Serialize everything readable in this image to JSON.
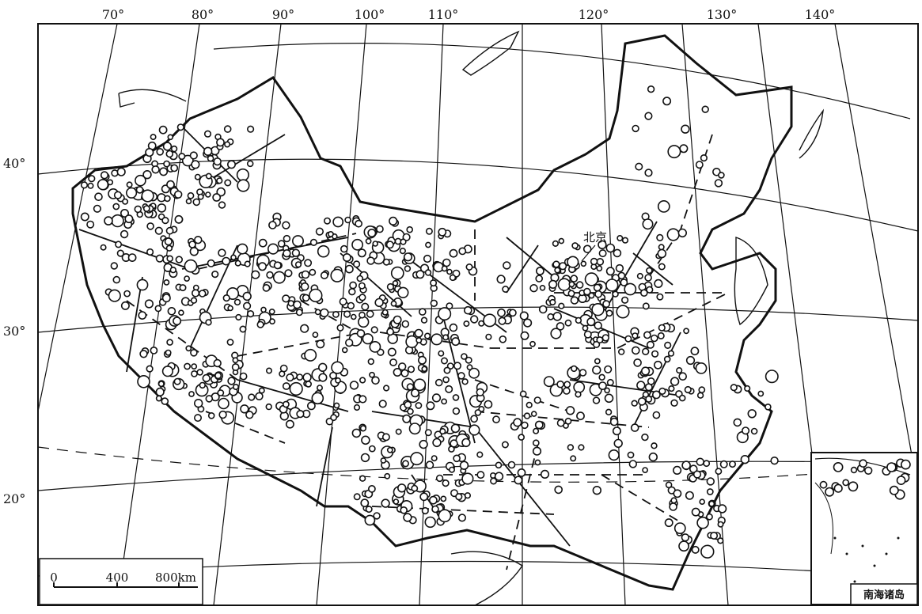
{
  "map": {
    "longitude_labels": [
      "70°",
      "80°",
      "90°",
      "100°",
      "110°",
      "120°",
      "130°",
      "140°"
    ],
    "latitude_labels": [
      "40°",
      "30°",
      "20°"
    ],
    "city_label": "北京",
    "inset_title": "南海诸岛",
    "scale_bar": {
      "tick_labels": [
        "0",
        "400",
        "800km"
      ]
    },
    "colors": {
      "ink": "#111111",
      "paper": "#ffffff"
    },
    "symbols": {
      "circle": "earthquake-epicenter-circle",
      "solid_line": "fault-line",
      "dashed_line": "inferred-fault-line"
    }
  }
}
